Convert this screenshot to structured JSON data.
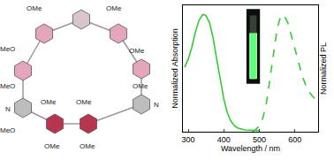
{
  "chart_data": {
    "type": "line",
    "xlabel": "Wavelength / nm",
    "ylabel": "Normalized Absorption",
    "y2label": "Normalized PL",
    "xlim": [
      285,
      665
    ],
    "xticks": [
      300,
      400,
      500,
      600
    ],
    "ylim": [
      0,
      1.08
    ],
    "y2lim": [
      0,
      1.08
    ],
    "tick_labels": "x",
    "grid": false,
    "series": [
      {
        "name": "Normalized Absorption",
        "color": "#33cc33",
        "line_style": "solid",
        "x": [
          290,
          300,
          310,
          320,
          330,
          340,
          345,
          350,
          360,
          370,
          380,
          390,
          400,
          410,
          420,
          430,
          440,
          460,
          480,
          500
        ],
        "values": [
          0.55,
          0.62,
          0.72,
          0.85,
          0.95,
          1.0,
          1.0,
          0.99,
          0.93,
          0.8,
          0.62,
          0.44,
          0.28,
          0.16,
          0.09,
          0.05,
          0.03,
          0.015,
          0.01,
          0.01
        ]
      },
      {
        "name": "Normalized PL",
        "color": "#33cc33",
        "line_style": "dashed",
        "axis": "y2",
        "x": [
          480,
          490,
          500,
          510,
          520,
          530,
          540,
          550,
          560,
          565,
          570,
          580,
          590,
          600,
          610,
          620,
          630,
          640,
          650,
          660
        ],
        "values": [
          0.0,
          0.02,
          0.05,
          0.12,
          0.25,
          0.45,
          0.68,
          0.88,
          0.99,
          1.0,
          0.99,
          0.93,
          0.82,
          0.7,
          0.58,
          0.48,
          0.4,
          0.34,
          0.3,
          0.27
        ]
      }
    ]
  },
  "structure": {
    "labels": [
      "OMe",
      "OMe",
      "MeO",
      "OMe",
      "MeO",
      "OMe",
      "N",
      "MeO",
      "OMe",
      "OMe",
      "OMe",
      "OMe",
      "N"
    ]
  }
}
